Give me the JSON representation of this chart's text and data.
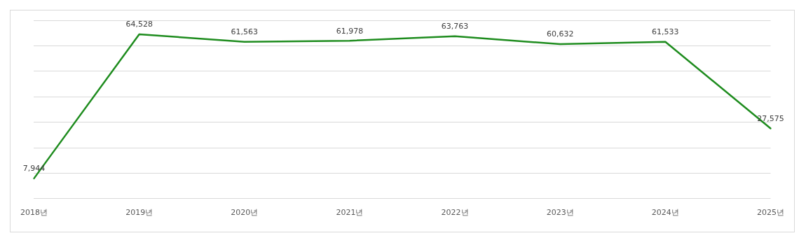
{
  "chart_data": {
    "type": "line",
    "categories": [
      "2018년",
      "2019년",
      "2020년",
      "2021년",
      "2022년",
      "2023년",
      "2024년",
      "2025년"
    ],
    "series": [
      {
        "color": "#1e8c1e",
        "values": [
          7944,
          64528,
          61563,
          61978,
          63763,
          60632,
          61533,
          27575
        ],
        "value_labels": [
          "7,944",
          "64,528",
          "61,563",
          "61,978",
          "63,763",
          "60,632",
          "61,533",
          "27,575"
        ]
      }
    ],
    "grid": "y",
    "tick_labels": "x",
    "legend": false,
    "marker": "none",
    "line_style": "solid"
  }
}
